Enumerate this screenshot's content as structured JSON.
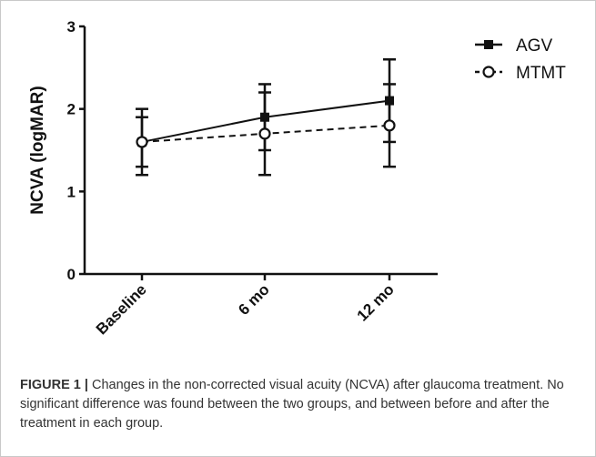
{
  "chart_data": {
    "type": "line",
    "categories": [
      "Baseline",
      "6 mo",
      "12 mo"
    ],
    "series": [
      {
        "name": "AGV",
        "marker": "filled-square",
        "line_style": "solid",
        "values": [
          1.6,
          1.9,
          2.1
        ],
        "error_low": [
          1.2,
          1.5,
          1.6
        ],
        "error_high": [
          2.0,
          2.3,
          2.6
        ]
      },
      {
        "name": "MTMT",
        "marker": "open-circle",
        "line_style": "dashed",
        "values": [
          1.6,
          1.7,
          1.8
        ],
        "error_low": [
          1.3,
          1.2,
          1.3
        ],
        "error_high": [
          1.9,
          2.2,
          2.3
        ]
      }
    ],
    "ylabel": "NCVA (logMAR)",
    "xlabel": "",
    "ylim": [
      0,
      3
    ],
    "yticks": [
      "0",
      "1",
      "2",
      "3"
    ],
    "grid": false,
    "legend_position": "top-right",
    "color": "#111111"
  },
  "caption": {
    "label": "FIGURE 1 |",
    "text": " Changes in the non-corrected visual acuity (NCVA) after glaucoma treatment. No significant difference was found between the two groups, and between before and after the treatment in each group."
  }
}
